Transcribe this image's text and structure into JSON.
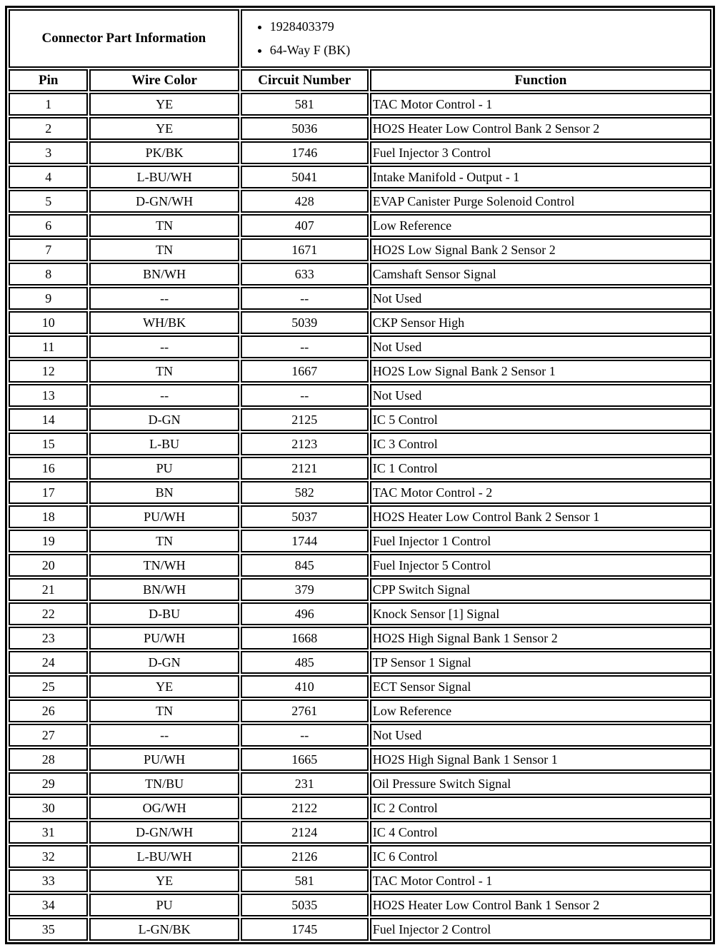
{
  "colors": {
    "border": "#000000",
    "background": "#ffffff",
    "text": "#000000"
  },
  "connector": {
    "title": "Connector Part Information",
    "items": [
      "1928403379",
      "64-Way F (BK)"
    ]
  },
  "columns": [
    "Pin",
    "Wire Color",
    "Circuit Number",
    "Function"
  ],
  "rows": [
    [
      "1",
      "YE",
      "581",
      "TAC Motor Control - 1"
    ],
    [
      "2",
      "YE",
      "5036",
      "HO2S Heater Low Control Bank 2 Sensor 2"
    ],
    [
      "3",
      "PK/BK",
      "1746",
      "Fuel Injector 3 Control"
    ],
    [
      "4",
      "L-BU/WH",
      "5041",
      "Intake Manifold - Output - 1"
    ],
    [
      "5",
      "D-GN/WH",
      "428",
      "EVAP Canister Purge Solenoid Control"
    ],
    [
      "6",
      "TN",
      "407",
      "Low Reference"
    ],
    [
      "7",
      "TN",
      "1671",
      "HO2S Low Signal Bank 2 Sensor 2"
    ],
    [
      "8",
      "BN/WH",
      "633",
      "Camshaft Sensor Signal"
    ],
    [
      "9",
      "--",
      "--",
      "Not Used"
    ],
    [
      "10",
      "WH/BK",
      "5039",
      "CKP Sensor High"
    ],
    [
      "11",
      "--",
      "--",
      "Not Used"
    ],
    [
      "12",
      "TN",
      "1667",
      "HO2S Low Signal Bank 2 Sensor 1"
    ],
    [
      "13",
      "--",
      "--",
      "Not Used"
    ],
    [
      "14",
      "D-GN",
      "2125",
      "IC 5 Control"
    ],
    [
      "15",
      "L-BU",
      "2123",
      "IC 3 Control"
    ],
    [
      "16",
      "PU",
      "2121",
      "IC 1 Control"
    ],
    [
      "17",
      "BN",
      "582",
      "TAC Motor Control - 2"
    ],
    [
      "18",
      "PU/WH",
      "5037",
      "HO2S Heater Low Control Bank 2 Sensor 1"
    ],
    [
      "19",
      "TN",
      "1744",
      "Fuel Injector 1 Control"
    ],
    [
      "20",
      "TN/WH",
      "845",
      "Fuel Injector 5 Control"
    ],
    [
      "21",
      "BN/WH",
      "379",
      "CPP Switch Signal"
    ],
    [
      "22",
      "D-BU",
      "496",
      "Knock Sensor [1] Signal"
    ],
    [
      "23",
      "PU/WH",
      "1668",
      "HO2S High Signal Bank 1 Sensor 2"
    ],
    [
      "24",
      "D-GN",
      "485",
      "TP Sensor 1 Signal"
    ],
    [
      "25",
      "YE",
      "410",
      "ECT Sensor Signal"
    ],
    [
      "26",
      "TN",
      "2761",
      "Low Reference"
    ],
    [
      "27",
      "--",
      "--",
      "Not Used"
    ],
    [
      "28",
      "PU/WH",
      "1665",
      "HO2S High Signal Bank 1 Sensor 1"
    ],
    [
      "29",
      "TN/BU",
      "231",
      "Oil Pressure Switch Signal"
    ],
    [
      "30",
      "OG/WH",
      "2122",
      "IC 2 Control"
    ],
    [
      "31",
      "D-GN/WH",
      "2124",
      "IC 4 Control"
    ],
    [
      "32",
      "L-BU/WH",
      "2126",
      "IC 6 Control"
    ],
    [
      "33",
      "YE",
      "581",
      "TAC Motor Control - 1"
    ],
    [
      "34",
      "PU",
      "5035",
      "HO2S Heater Low Control Bank 1 Sensor 2"
    ],
    [
      "35",
      "L-GN/BK",
      "1745",
      "Fuel Injector 2 Control"
    ]
  ]
}
